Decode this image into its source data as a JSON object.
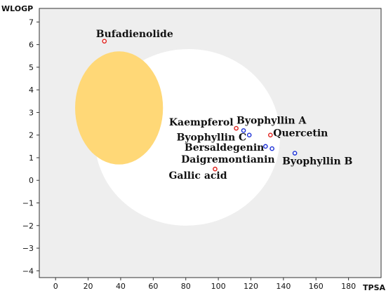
{
  "chart_data": {
    "type": "scatter",
    "title": "",
    "xlabel": "TPSA",
    "ylabel": "WLOGP",
    "xlim": [
      -10,
      200
    ],
    "ylim": [
      -4.3,
      7.6
    ],
    "grid": false,
    "x_ticks": [
      0,
      20,
      40,
      60,
      80,
      100,
      120,
      140,
      160,
      180
    ],
    "y_ticks": [
      7,
      6,
      5,
      4,
      3,
      2,
      1,
      0,
      -1,
      -2,
      -3,
      -4
    ],
    "regions": [
      {
        "kind": "white-ellipse",
        "color": "#ffffff",
        "cx": 81,
        "cy": 1.9,
        "rx": 57,
        "ry": 3.9,
        "rotation_deg": -8
      },
      {
        "kind": "yolk-ellipse",
        "color": "#ffd877",
        "cx": 39,
        "cy": 3.2,
        "rx": 27,
        "ry": 2.5
      }
    ],
    "points": [
      {
        "name": "Bufadienolide",
        "x": 30,
        "y": 6.15,
        "color": "#e0201b"
      },
      {
        "name": "Kaempferol",
        "x": 111,
        "y": 2.3,
        "color": "#e0201b"
      },
      {
        "name": "Byophyllin A",
        "x": 115.5,
        "y": 2.2,
        "color": "#1a2fd6"
      },
      {
        "name": "Byophyllin C",
        "x": 119,
        "y": 2.0,
        "color": "#1a2fd6"
      },
      {
        "name": "Quercetin",
        "x": 132,
        "y": 2.0,
        "color": "#e0201b"
      },
      {
        "name": "Bersaldegenin",
        "x": 129,
        "y": 1.5,
        "color": "#1a2fd6"
      },
      {
        "name": "Daigremontianin",
        "x": 133,
        "y": 1.4,
        "color": "#1a2fd6"
      },
      {
        "name": "Byophyllin B",
        "x": 147,
        "y": 1.2,
        "color": "#1a2fd6"
      },
      {
        "name": "Gallic acid",
        "x": 98,
        "y": 0.5,
        "color": "#e0201b"
      }
    ],
    "background_color": "#eeeeee"
  }
}
